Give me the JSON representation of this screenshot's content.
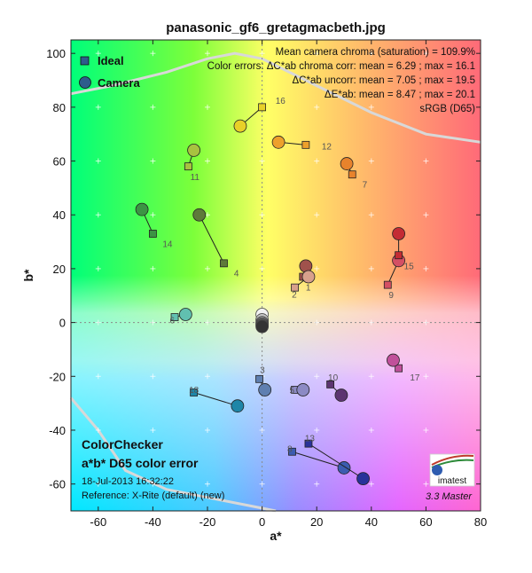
{
  "chart_data": {
    "type": "scatter",
    "title": "panasonic_gf6_gretagmacbeth.jpg",
    "xlabel": "a*",
    "ylabel": "b*",
    "xlim": [
      -70,
      80
    ],
    "ylim": [
      -70,
      105
    ],
    "xticks": [
      -60,
      -40,
      -20,
      0,
      20,
      40,
      60,
      80
    ],
    "yticks": [
      -60,
      -40,
      -20,
      0,
      20,
      40,
      60,
      80,
      100
    ],
    "grid": false,
    "legend_position": "top-left",
    "legend": [
      "Ideal",
      "Camera"
    ],
    "info_lines": [
      "Mean camera chroma (saturation) = 109.9%",
      "Color errors: ΔC*ab chroma corr:  mean = 6.29 ;  max = 16.1",
      "ΔC*ab uncorr:  mean = 7.05 ;  max = 19.5",
      "ΔE*ab:  mean = 8.47 ;  max = 20.1",
      "sRGB (D65)"
    ],
    "bottom_left_lines": [
      "ColorChecker",
      "a*b* D65 color error",
      "18-Jul-2013 16:32:22",
      "Reference: X-Rite (default) (new)"
    ],
    "version": "3.3  Master",
    "logo_text": "imatest",
    "patches": [
      {
        "id": "1",
        "ideal": [
          15,
          17
        ],
        "camera": [
          16,
          21
        ],
        "color": "#a0524c"
      },
      {
        "id": "2",
        "ideal": [
          12,
          13
        ],
        "camera": [
          17,
          17
        ],
        "color": "#d7a08c"
      },
      {
        "id": "3",
        "ideal": [
          -1,
          -21
        ],
        "camera": [
          1,
          -25
        ],
        "color": "#5f7fb0"
      },
      {
        "id": "4",
        "ideal": [
          -14,
          22
        ],
        "camera": [
          -23,
          40
        ],
        "color": "#5e7a3a"
      },
      {
        "id": "5",
        "ideal": [
          12,
          -25
        ],
        "camera": [
          15,
          -25
        ],
        "color": "#8c8ac4"
      },
      {
        "id": "6",
        "ideal": [
          -32,
          2
        ],
        "camera": [
          -28,
          3
        ],
        "color": "#61c0b0"
      },
      {
        "id": "7",
        "ideal": [
          33,
          55
        ],
        "camera": [
          31,
          59
        ],
        "color": "#e8832c"
      },
      {
        "id": "8",
        "ideal": [
          11,
          -48
        ],
        "camera": [
          30,
          -54
        ],
        "color": "#3c5cb0"
      },
      {
        "id": "9",
        "ideal": [
          46,
          14
        ],
        "camera": [
          50,
          23
        ],
        "color": "#d45064"
      },
      {
        "id": "10",
        "ideal": [
          25,
          -23
        ],
        "camera": [
          29,
          -27
        ],
        "color": "#5c3470"
      },
      {
        "id": "11",
        "ideal": [
          -27,
          58
        ],
        "camera": [
          -25,
          64
        ],
        "color": "#a8c240"
      },
      {
        "id": "12",
        "ideal": [
          16,
          66
        ],
        "camera": [
          6,
          67
        ],
        "color": "#eda02c"
      },
      {
        "id": "13",
        "ideal": [
          17,
          -45
        ],
        "camera": [
          37,
          -58
        ],
        "color": "#28329a"
      },
      {
        "id": "14",
        "ideal": [
          -40,
          33
        ],
        "camera": [
          -44,
          42
        ],
        "color": "#3c9444"
      },
      {
        "id": "15",
        "ideal": [
          50,
          25
        ],
        "camera": [
          50,
          33
        ],
        "color": "#c42c34"
      },
      {
        "id": "16",
        "ideal": [
          0,
          80
        ],
        "camera": [
          -8,
          73
        ],
        "color": "#e8d028"
      },
      {
        "id": "17",
        "ideal": [
          50,
          -17
        ],
        "camera": [
          48,
          -14
        ],
        "color": "#c0509a"
      },
      {
        "id": "18",
        "ideal": [
          -25,
          -26
        ],
        "camera": [
          -9,
          -31
        ],
        "color": "#1e86a8"
      }
    ],
    "neutral_points": [
      {
        "a": 0,
        "b": 3,
        "color": "#f2f2f2"
      },
      {
        "a": 0,
        "b": 1,
        "color": "#c8c8c8"
      },
      {
        "a": 0,
        "b": 0,
        "color": "#a0a0a0"
      },
      {
        "a": 0,
        "b": -0.5,
        "color": "#7a7a7a"
      },
      {
        "a": 0,
        "b": -1,
        "color": "#555555"
      },
      {
        "a": 0,
        "b": -1.5,
        "color": "#343434"
      }
    ]
  }
}
